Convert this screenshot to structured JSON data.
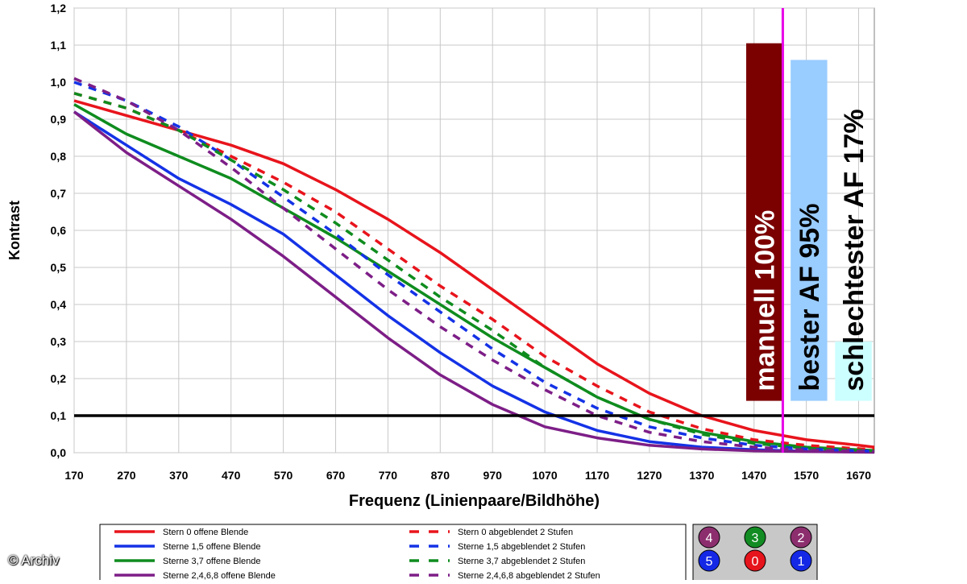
{
  "credit": "© Archiv",
  "colors": {
    "red": "#e8141c",
    "blue": "#1432e6",
    "green": "#0f8c1e",
    "purple": "#7d1e87",
    "magenta": "#e600e6"
  },
  "chart_data": {
    "type": "line",
    "title": "",
    "xlabel": "Frequenz (Linienpaare/Bildhöhe)",
    "ylabel": "Kontrast",
    "xlim": [
      170,
      1700
    ],
    "ylim": [
      0,
      1.2
    ],
    "grid": true,
    "x_ticks": [
      "170",
      "270",
      "370",
      "470",
      "570",
      "670",
      "770",
      "870",
      "970",
      "1070",
      "1170",
      "1270",
      "1370",
      "1470",
      "1570",
      "1670"
    ],
    "y_ticks": [
      "0,0",
      "0,1",
      "0,2",
      "0,3",
      "0,4",
      "0,5",
      "0,6",
      "0,7",
      "0,8",
      "0,9",
      "1,0",
      "1,1",
      "1,2"
    ],
    "threshold": {
      "y": 0.1,
      "color": "#000000"
    },
    "marker_line": {
      "x": 1525,
      "color": "#e600e6"
    },
    "series": [
      {
        "name": "Stern 0 offene Blende",
        "color": "#e8141c",
        "dash": false,
        "x": [
          170,
          270,
          370,
          470,
          570,
          670,
          770,
          870,
          970,
          1070,
          1170,
          1270,
          1370,
          1470,
          1570,
          1670,
          1700
        ],
        "y": [
          0.95,
          0.91,
          0.87,
          0.83,
          0.78,
          0.71,
          0.63,
          0.54,
          0.44,
          0.34,
          0.24,
          0.16,
          0.1,
          0.06,
          0.035,
          0.02,
          0.015
        ]
      },
      {
        "name": "Sterne 1,5 offene Blende",
        "color": "#1432e6",
        "dash": false,
        "x": [
          170,
          270,
          370,
          470,
          570,
          670,
          770,
          870,
          970,
          1070,
          1170,
          1270,
          1370,
          1470,
          1570,
          1700
        ],
        "y": [
          0.92,
          0.83,
          0.74,
          0.67,
          0.59,
          0.48,
          0.37,
          0.27,
          0.18,
          0.11,
          0.06,
          0.03,
          0.015,
          0.008,
          0.004,
          0.002
        ]
      },
      {
        "name": "Sterne 3,7 offene Blende",
        "color": "#0f8c1e",
        "dash": false,
        "x": [
          170,
          270,
          370,
          470,
          570,
          670,
          770,
          870,
          970,
          1070,
          1170,
          1270,
          1370,
          1470,
          1570,
          1700
        ],
        "y": [
          0.94,
          0.86,
          0.8,
          0.74,
          0.66,
          0.58,
          0.49,
          0.4,
          0.31,
          0.23,
          0.15,
          0.09,
          0.055,
          0.03,
          0.015,
          0.006
        ]
      },
      {
        "name": "Sterne 2,4,6,8 offene Blende",
        "color": "#7d1e87",
        "dash": false,
        "x": [
          170,
          270,
          370,
          470,
          570,
          670,
          770,
          870,
          970,
          1070,
          1170,
          1270,
          1370,
          1470,
          1570,
          1700
        ],
        "y": [
          0.92,
          0.81,
          0.72,
          0.63,
          0.53,
          0.42,
          0.31,
          0.21,
          0.13,
          0.07,
          0.04,
          0.02,
          0.01,
          0.005,
          0.003,
          0.001
        ]
      },
      {
        "name": "Stern 0 abgeblendet 2 Stufen",
        "color": "#e8141c",
        "dash": true,
        "x": [
          170,
          270,
          370,
          470,
          570,
          670,
          770,
          870,
          970,
          1070,
          1170,
          1270,
          1370,
          1470,
          1570,
          1700
        ],
        "y": [
          0.97,
          0.93,
          0.87,
          0.8,
          0.73,
          0.65,
          0.55,
          0.45,
          0.36,
          0.26,
          0.18,
          0.11,
          0.065,
          0.035,
          0.02,
          0.008
        ]
      },
      {
        "name": "Sterne 1,5 abgeblendet 2 Stufen",
        "color": "#1432e6",
        "dash": true,
        "x": [
          170,
          270,
          370,
          470,
          570,
          670,
          770,
          870,
          970,
          1070,
          1170,
          1270,
          1370,
          1470,
          1570,
          1700
        ],
        "y": [
          1.0,
          0.95,
          0.88,
          0.79,
          0.69,
          0.59,
          0.48,
          0.38,
          0.28,
          0.19,
          0.12,
          0.07,
          0.04,
          0.02,
          0.01,
          0.004
        ]
      },
      {
        "name": "Sterne 3,7 abgeblendet 2 Stufen",
        "color": "#0f8c1e",
        "dash": true,
        "x": [
          170,
          270,
          370,
          470,
          570,
          670,
          770,
          870,
          970,
          1070,
          1170,
          1270,
          1370,
          1470,
          1570,
          1700
        ],
        "y": [
          0.97,
          0.93,
          0.87,
          0.79,
          0.71,
          0.62,
          0.52,
          0.42,
          0.33,
          0.23,
          0.15,
          0.09,
          0.05,
          0.025,
          0.012,
          0.005
        ]
      },
      {
        "name": "Sterne 2,4,6,8 abgeblendet 2 Stufen",
        "color": "#7d1e87",
        "dash": true,
        "x": [
          170,
          270,
          370,
          470,
          570,
          670,
          770,
          870,
          970,
          1070,
          1170,
          1270,
          1370,
          1470,
          1570,
          1700
        ],
        "y": [
          1.01,
          0.95,
          0.87,
          0.77,
          0.66,
          0.55,
          0.44,
          0.34,
          0.25,
          0.17,
          0.1,
          0.055,
          0.03,
          0.015,
          0.007,
          0.003
        ]
      }
    ],
    "bars": [
      {
        "label": "manuell 100%",
        "x_from": 1455,
        "x_to": 1525,
        "y_from": 0.14,
        "y_to": 1.105,
        "color": "#7b0000"
      },
      {
        "label": "bester AF 95%",
        "x_from": 1540,
        "x_to": 1610,
        "y_from": 0.14,
        "y_to": 1.06,
        "color": "#99ccff"
      },
      {
        "label": "schlechtester AF 17%",
        "x_from": 1625,
        "x_to": 1695,
        "y_from": 0.14,
        "y_to": 0.3,
        "color": "#ccffff"
      }
    ],
    "legend": {
      "position": "bottom"
    },
    "inset": {
      "circles": [
        {
          "label": "4",
          "color": "#8c2e6e"
        },
        {
          "label": "3",
          "color": "#128c23"
        },
        {
          "label": "2",
          "color": "#8c2e6e"
        },
        {
          "label": "5",
          "color": "#1428e6"
        },
        {
          "label": "0",
          "color": "#e6141c"
        },
        {
          "label": "1",
          "color": "#1428e6"
        }
      ]
    }
  }
}
